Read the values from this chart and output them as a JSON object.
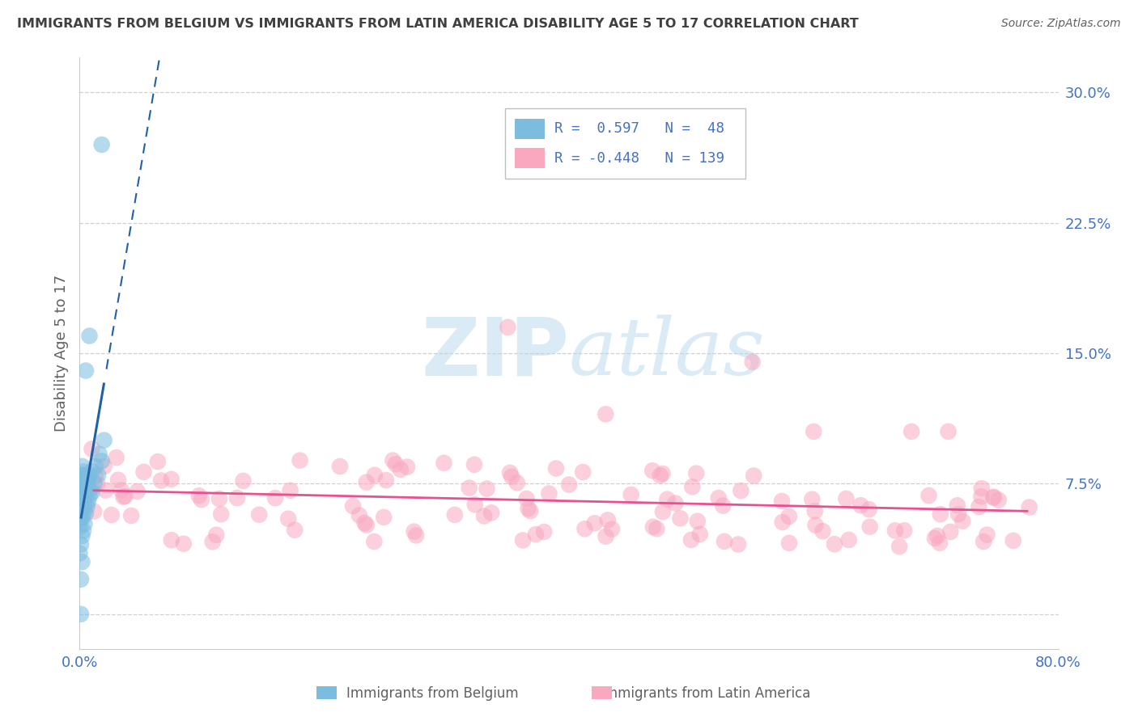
{
  "title": "IMMIGRANTS FROM BELGIUM VS IMMIGRANTS FROM LATIN AMERICA DISABILITY AGE 5 TO 17 CORRELATION CHART",
  "source": "Source: ZipAtlas.com",
  "ylabel": "Disability Age 5 to 17",
  "xlim": [
    0.0,
    0.8
  ],
  "ylim": [
    -0.02,
    0.32
  ],
  "ytick_vals": [
    0.0,
    0.075,
    0.15,
    0.225,
    0.3
  ],
  "ytick_labels": [
    "",
    "7.5%",
    "15.0%",
    "22.5%",
    "30.0%"
  ],
  "xtick_vals": [
    0.0,
    0.1,
    0.2,
    0.3,
    0.4,
    0.5,
    0.6,
    0.7,
    0.8
  ],
  "xtick_labels": [
    "0.0%",
    "",
    "",
    "",
    "",
    "",
    "",
    "",
    "80.0%"
  ],
  "belgium_R": 0.597,
  "belgium_N": 48,
  "latin_R": -0.448,
  "latin_N": 139,
  "belgium_color": "#7BBCDF",
  "latin_color": "#F9A8C0",
  "trend_belgium_color": "#2060A8",
  "trend_latin_color": "#E85090",
  "text_color": "#4472C4",
  "watermark_color": "#B8D8EE",
  "background_color": "#ffffff",
  "grid_color": "#D0D0D0",
  "title_color": "#404040",
  "source_color": "#606060",
  "axis_label_color": "#606060"
}
